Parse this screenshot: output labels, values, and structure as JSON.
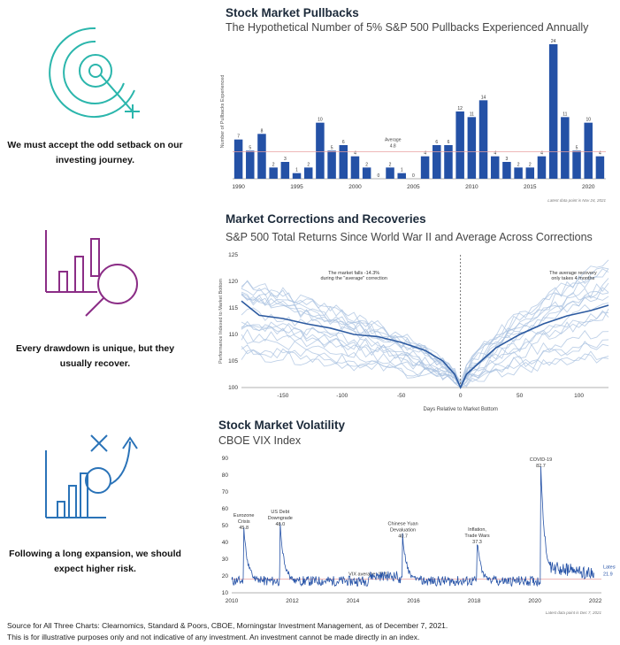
{
  "left_panel": {
    "captions": [
      "We must accept the odd setback on our investing journey.",
      "Every drawdown is unique, but they usually recover.",
      "Following a long expansion, we should expect higher risk."
    ],
    "icons": [
      "target-icon",
      "bar-chart-magnifier-icon",
      "chart-volatility-icon"
    ],
    "colors": {
      "target": "#2bb6ac",
      "magnifier": "#8b2d86",
      "volatility": "#2a73b8"
    }
  },
  "footer": {
    "line1": "Source for All Three Charts: Clearnomics, Standard & Poors, CBOE, Morningstar Investment Management, as of December 7, 2021.",
    "line2": "This is for illustrative purposes only and not indicative of any investment. An investment cannot be made directly in an index."
  },
  "chart_data": [
    {
      "type": "bar",
      "title": "Stock Market Pullbacks",
      "subtitle": "The Hypothetical Number of 5% S&P 500 Pullbacks Experienced Annually",
      "ylabel": "Number of Pullbacks Experienced",
      "x": [
        1990,
        1991,
        1992,
        1993,
        1994,
        1995,
        1996,
        1997,
        1998,
        1999,
        2000,
        2001,
        2002,
        2003,
        2004,
        2005,
        2006,
        2007,
        2008,
        2009,
        2010,
        2011,
        2012,
        2013,
        2014,
        2015,
        2016,
        2017,
        2018,
        2019,
        2020,
        2021
      ],
      "x_ticks": [
        1990,
        1995,
        2000,
        2005,
        2010,
        2015,
        2020
      ],
      "values": [
        7,
        5,
        8,
        2,
        3,
        1,
        2,
        10,
        5,
        6,
        4,
        2,
        0,
        2,
        1,
        0,
        4,
        6,
        6,
        12,
        11,
        14,
        4,
        3,
        2,
        2,
        4,
        24,
        11,
        5,
        10,
        4
      ],
      "ylim": [
        0,
        24
      ],
      "average": {
        "label": "Average",
        "value": 4.8,
        "value_label": "4.8"
      },
      "note": "Latest data point is Nov 24, 2021",
      "colors": {
        "bar": "#2451a6",
        "average": "#e8a0a0"
      }
    },
    {
      "type": "line",
      "title": "Market Corrections and Recoveries",
      "subtitle": "S&P 500 Total Returns Since World War II and Average Across Corrections",
      "xlabel": "Days Relative to Market Bottom",
      "ylabel": "Performance Indexed to Market Bottom",
      "xlim": [
        -185,
        125
      ],
      "ylim": [
        100,
        125
      ],
      "x_ticks": [
        -150,
        -100,
        -50,
        0,
        50,
        100
      ],
      "y_ticks": [
        100,
        105,
        110,
        115,
        120,
        125
      ],
      "annotations": [
        "The market falls -14.3%",
        "during the \"average\" correction",
        "The average recovery",
        "only takes 4 months"
      ],
      "average_series": {
        "x": [
          -185,
          -170,
          -150,
          -130,
          -110,
          -90,
          -70,
          -50,
          -30,
          -15,
          -5,
          0,
          5,
          15,
          30,
          50,
          70,
          90,
          110,
          125
        ],
        "y": [
          116.3,
          113.6,
          113.0,
          112.0,
          111.2,
          110.0,
          109.6,
          108.5,
          107.0,
          105.0,
          102.5,
          100,
          102.5,
          104.5,
          107.5,
          110.0,
          112.0,
          113.5,
          114.5,
          115.5
        ]
      },
      "colors": {
        "average": "#2c5aa0",
        "individual": "#a9c1e0",
        "zero_line": "#555555"
      }
    },
    {
      "type": "line",
      "title": "Stock Market Volatility",
      "subtitle": "CBOE VIX Index",
      "xlim": [
        2010,
        2022.2
      ],
      "ylim": [
        10,
        90
      ],
      "x_ticks": [
        2010,
        2012,
        2014,
        2016,
        2018,
        2020,
        2022
      ],
      "y_ticks": [
        10,
        20,
        30,
        40,
        50,
        60,
        70,
        80,
        90
      ],
      "average": {
        "label": "VIX average: 18.1",
        "value": 18.1
      },
      "events": [
        {
          "label1": "Eurozone",
          "label2": "Crisis",
          "value_label": "45.8",
          "x": 2010.4,
          "y": 45.8
        },
        {
          "label1": "US Debt",
          "label2": "Downgrade",
          "value_label": "48.0",
          "x": 2011.6,
          "y": 48.0
        },
        {
          "label1": "Chinese Yuan",
          "label2": "Devaluation",
          "value_label": "40.7",
          "x": 2015.65,
          "y": 40.7
        },
        {
          "label1": "Inflation,",
          "label2": "Trade Wars",
          "value_label": "37.3",
          "x": 2018.1,
          "y": 37.3
        },
        {
          "label1": "COVID-19",
          "label2": "",
          "value_label": "82.7",
          "x": 2020.2,
          "y": 82.7
        }
      ],
      "latest": {
        "label": "Latest",
        "value_label": "21.9",
        "value": 21.9
      },
      "note": "Latest data point is Dec 7, 2021",
      "colors": {
        "line": "#2451a6",
        "average": "#e8a0a0"
      }
    }
  ]
}
